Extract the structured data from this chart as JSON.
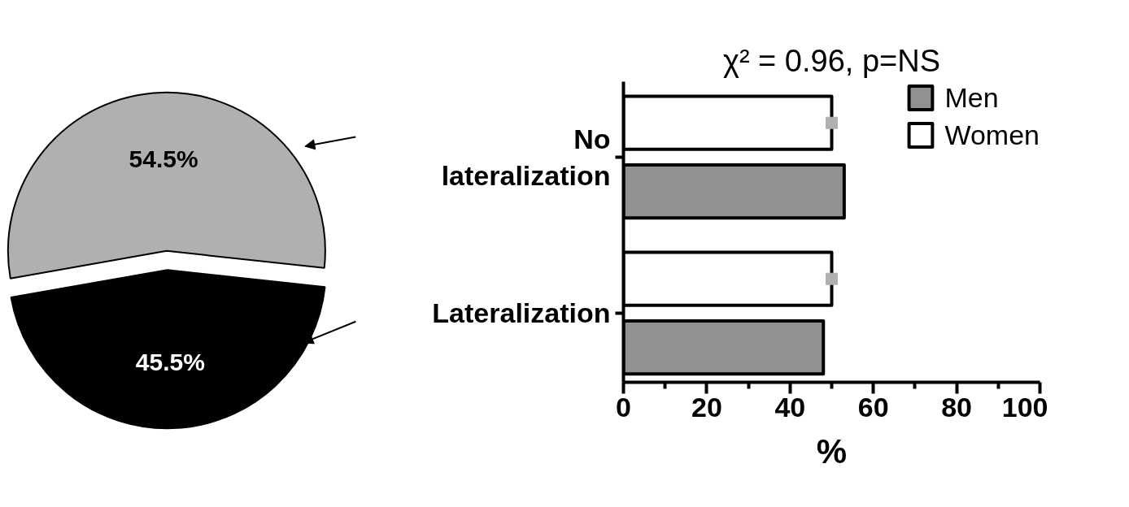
{
  "chart_data": [
    {
      "type": "pie",
      "categories": [
        null,
        null
      ],
      "values": [
        54.5,
        45.5
      ],
      "colors": [
        "#b0b0b0",
        "#000000"
      ],
      "value_labels": [
        "54.5%",
        "45.5%"
      ]
    },
    {
      "type": "bar",
      "orientation": "horizontal",
      "title": "χ² = 0.96, p=NS",
      "xlabel": "%",
      "categories": [
        "No lateralization",
        "Lateralization"
      ],
      "series": [
        {
          "name": "Men",
          "color": "#919191",
          "values": [
            53,
            48
          ]
        },
        {
          "name": "Women",
          "color": "#ffffff",
          "values": [
            50,
            50
          ]
        },
        {
          "type": "scatter",
          "color": "#b0b0b0",
          "marker": "square",
          "values": [
            50,
            50
          ]
        }
      ],
      "xlim": [
        0,
        100
      ],
      "xticks": [
        0,
        20,
        40,
        60,
        80,
        100
      ],
      "grid": false,
      "legend": "top right"
    }
  ]
}
